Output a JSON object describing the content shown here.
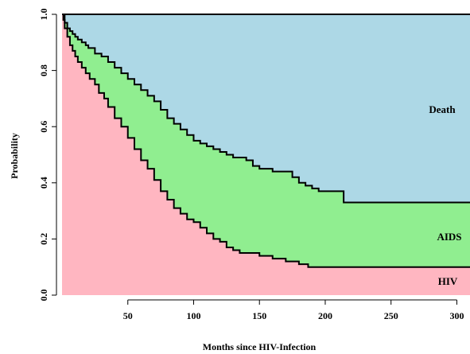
{
  "chart_data": {
    "type": "area",
    "xlabel": "Months since HIV-Infection",
    "ylabel": "Probability",
    "xlim": [
      0,
      310
    ],
    "ylim": [
      0,
      1
    ],
    "xticks": [
      "50",
      "100",
      "150",
      "200",
      "250",
      "300"
    ],
    "yticks": [
      "0.0",
      "0.2",
      "0.4",
      "0.6",
      "0.8",
      "1.0"
    ],
    "stacked": true,
    "series": [
      {
        "name": "HIV",
        "color": "#ffb6c1",
        "boundary": [
          [
            0,
            1.0
          ],
          [
            1,
            0.98
          ],
          [
            2,
            0.95
          ],
          [
            4,
            0.92
          ],
          [
            6,
            0.89
          ],
          [
            8,
            0.87
          ],
          [
            10,
            0.85
          ],
          [
            12,
            0.83
          ],
          [
            15,
            0.81
          ],
          [
            18,
            0.79
          ],
          [
            21,
            0.77
          ],
          [
            25,
            0.75
          ],
          [
            28,
            0.72
          ],
          [
            32,
            0.7
          ],
          [
            35,
            0.67
          ],
          [
            40,
            0.63
          ],
          [
            45,
            0.6
          ],
          [
            50,
            0.56
          ],
          [
            55,
            0.52
          ],
          [
            60,
            0.48
          ],
          [
            65,
            0.45
          ],
          [
            70,
            0.41
          ],
          [
            75,
            0.37
          ],
          [
            80,
            0.34
          ],
          [
            85,
            0.31
          ],
          [
            90,
            0.29
          ],
          [
            95,
            0.27
          ],
          [
            100,
            0.26
          ],
          [
            105,
            0.24
          ],
          [
            110,
            0.22
          ],
          [
            115,
            0.2
          ],
          [
            120,
            0.19
          ],
          [
            125,
            0.17
          ],
          [
            130,
            0.16
          ],
          [
            135,
            0.15
          ],
          [
            140,
            0.15
          ],
          [
            150,
            0.14
          ],
          [
            160,
            0.13
          ],
          [
            170,
            0.12
          ],
          [
            180,
            0.11
          ],
          [
            187,
            0.1
          ],
          [
            310,
            0.1
          ]
        ]
      },
      {
        "name": "AIDS",
        "color": "#90ee90",
        "boundary": [
          [
            0,
            1.0
          ],
          [
            2,
            0.97
          ],
          [
            4,
            0.95
          ],
          [
            6,
            0.94
          ],
          [
            8,
            0.93
          ],
          [
            10,
            0.92
          ],
          [
            12,
            0.91
          ],
          [
            15,
            0.9
          ],
          [
            18,
            0.89
          ],
          [
            20,
            0.88
          ],
          [
            25,
            0.86
          ],
          [
            30,
            0.85
          ],
          [
            35,
            0.83
          ],
          [
            40,
            0.81
          ],
          [
            45,
            0.79
          ],
          [
            50,
            0.77
          ],
          [
            55,
            0.75
          ],
          [
            60,
            0.73
          ],
          [
            65,
            0.71
          ],
          [
            70,
            0.69
          ],
          [
            75,
            0.66
          ],
          [
            80,
            0.63
          ],
          [
            85,
            0.61
          ],
          [
            90,
            0.59
          ],
          [
            95,
            0.57
          ],
          [
            100,
            0.55
          ],
          [
            105,
            0.54
          ],
          [
            110,
            0.53
          ],
          [
            115,
            0.52
          ],
          [
            120,
            0.51
          ],
          [
            125,
            0.5
          ],
          [
            130,
            0.49
          ],
          [
            135,
            0.49
          ],
          [
            140,
            0.48
          ],
          [
            145,
            0.46
          ],
          [
            150,
            0.45
          ],
          [
            155,
            0.45
          ],
          [
            160,
            0.44
          ],
          [
            170,
            0.44
          ],
          [
            175,
            0.42
          ],
          [
            180,
            0.4
          ],
          [
            185,
            0.39
          ],
          [
            190,
            0.38
          ],
          [
            195,
            0.37
          ],
          [
            200,
            0.37
          ],
          [
            213,
            0.37
          ],
          [
            214,
            0.33
          ],
          [
            310,
            0.33
          ]
        ]
      },
      {
        "name": "Death",
        "color": "#add8e6",
        "boundary": [
          [
            0,
            1.0
          ],
          [
            310,
            1.0
          ]
        ]
      }
    ]
  }
}
